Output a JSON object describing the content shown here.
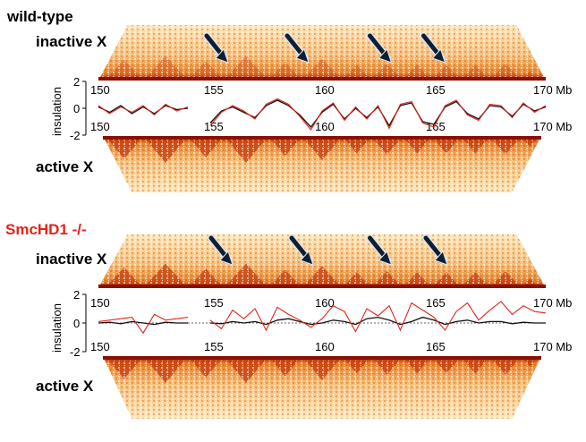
{
  "colors": {
    "wildtype_label": "#000000",
    "mutant_label": "#e3241b",
    "line_inactive": "#e3241b",
    "line_active": "#111111",
    "heat_dark": "#9a1400",
    "heat_mid": "#e8832a",
    "heat_light": "#fde6b8",
    "arrow": "#0f1e30"
  },
  "panels": [
    {
      "title": "wild-type",
      "inactive_label": "inactive X",
      "active_label": "active X",
      "axis_ticks_top": [
        "150",
        "155",
        "160",
        "165",
        "170 Mb"
      ],
      "axis_ticks_bottom": [
        "150",
        "155",
        "160",
        "165",
        "170 Mb"
      ],
      "y_ticks": [
        "2",
        "0",
        "-2"
      ],
      "y_label": "insulation",
      "tad_boundaries_mb": [
        150.3,
        152.0,
        154.0,
        155.6,
        157.6,
        159.1,
        160.9,
        162.2,
        163.6,
        164.9,
        166.2,
        167.5,
        168.9,
        169.7
      ],
      "arrows_mb": [
        155.8,
        159.4,
        163.1,
        165.5
      ],
      "inactive_tad_strength": 0.45
    },
    {
      "title": "SmcHD1 -/-",
      "inactive_label": "inactive X",
      "active_label": "active X",
      "axis_ticks_top": [
        "150",
        "155",
        "160",
        "165",
        "170 Mb"
      ],
      "axis_ticks_bottom": [
        "150",
        "155",
        "160",
        "165",
        "170 Mb"
      ],
      "y_ticks": [
        "2",
        "0",
        "-2"
      ],
      "y_label": "insulation",
      "tad_boundaries_mb": [
        150.3,
        152.0,
        154.0,
        155.6,
        157.6,
        159.1,
        160.9,
        162.2,
        163.6,
        164.9,
        166.2,
        167.5,
        168.9,
        169.7
      ],
      "arrows_mb": [
        156.0,
        159.6,
        163.1,
        165.6
      ],
      "inactive_tad_strength": 0.9
    }
  ],
  "chart_data": [
    {
      "type": "line",
      "title": "wild-type",
      "ylabel": "insulation",
      "xlim": [
        150,
        170
      ],
      "ylim": [
        -2,
        2
      ],
      "x": [
        150,
        150.5,
        151,
        151.5,
        152,
        152.5,
        153,
        153.5,
        154,
        154.5,
        155,
        155.5,
        156,
        156.5,
        157,
        157.5,
        158,
        158.5,
        159,
        159.5,
        160,
        160.5,
        161,
        161.5,
        162,
        162.5,
        163,
        163.5,
        164,
        164.5,
        165,
        165.5,
        166,
        166.5,
        167,
        167.5,
        168,
        168.5,
        169,
        169.5,
        170
      ],
      "series": [
        {
          "values": [
            0.2,
            -0.4,
            0.1,
            -0.3,
            0.2,
            -0.5,
            0.3,
            -0.2,
            0.1,
            null,
            -1.3,
            -0.3,
            0.2,
            -0.2,
            -0.8,
            0.3,
            0.7,
            0.3,
            -0.6,
            -1.6,
            -0.2,
            0.4,
            -0.9,
            0.1,
            -0.8,
            0.2,
            -1.5,
            0.3,
            0.5,
            -1.1,
            -1.4,
            0.2,
            0.6,
            -0.5,
            -0.9,
            0.3,
            0.2,
            -0.7,
            0.4,
            -0.3,
            0.2
          ]
        },
        {
          "values": [
            0.1,
            -0.3,
            0.2,
            -0.4,
            0.1,
            -0.4,
            0.2,
            -0.1,
            0.0,
            null,
            -1.1,
            -0.2,
            0.1,
            -0.3,
            -0.7,
            0.2,
            0.6,
            0.2,
            -0.5,
            -1.4,
            -0.3,
            0.3,
            -0.8,
            0.0,
            -0.7,
            0.1,
            -1.3,
            0.2,
            0.4,
            -1.0,
            -1.2,
            0.1,
            0.5,
            -0.4,
            -0.8,
            0.2,
            0.1,
            -0.6,
            0.3,
            -0.2,
            0.1
          ]
        }
      ]
    },
    {
      "type": "line",
      "title": "SmcHD1 -/-",
      "ylabel": "insulation",
      "xlim": [
        150,
        170
      ],
      "ylim": [
        -2,
        2
      ],
      "x": [
        150,
        150.5,
        151,
        151.5,
        152,
        152.5,
        153,
        153.5,
        154,
        154.5,
        155,
        155.5,
        156,
        156.5,
        157,
        157.5,
        158,
        158.5,
        159,
        159.5,
        160,
        160.5,
        161,
        161.5,
        162,
        162.5,
        163,
        163.5,
        164,
        164.5,
        165,
        165.5,
        166,
        166.5,
        167,
        167.5,
        168,
        168.5,
        169,
        169.5,
        170
      ],
      "series": [
        {
          "values": [
            0.1,
            0.2,
            0.3,
            0.4,
            -0.7,
            0.6,
            0.2,
            0.3,
            0.4,
            null,
            0.2,
            -0.4,
            0.9,
            0.3,
            1.0,
            -0.5,
            1.1,
            0.6,
            0.2,
            -0.3,
            0.3,
            1.2,
            0.8,
            -0.6,
            1.0,
            0.5,
            1.2,
            -0.5,
            1.4,
            0.9,
            0.4,
            -0.5,
            0.8,
            1.4,
            0.2,
            0.9,
            1.5,
            0.6,
            1.2,
            0.8,
            0.7
          ]
        },
        {
          "values": [
            0.0,
            0.05,
            -0.05,
            0.1,
            0.0,
            -0.1,
            0.05,
            0.0,
            0.0,
            null,
            0.0,
            -0.05,
            0.1,
            0.0,
            0.1,
            -0.1,
            0.2,
            0.3,
            0.1,
            -0.1,
            0.0,
            0.2,
            0.1,
            -0.1,
            0.3,
            0.4,
            0.2,
            -0.1,
            0.1,
            0.4,
            0.2,
            -0.1,
            0.1,
            0.2,
            0.0,
            0.1,
            0.1,
            -0.05,
            0.05,
            0.0,
            0.0
          ]
        }
      ]
    }
  ]
}
